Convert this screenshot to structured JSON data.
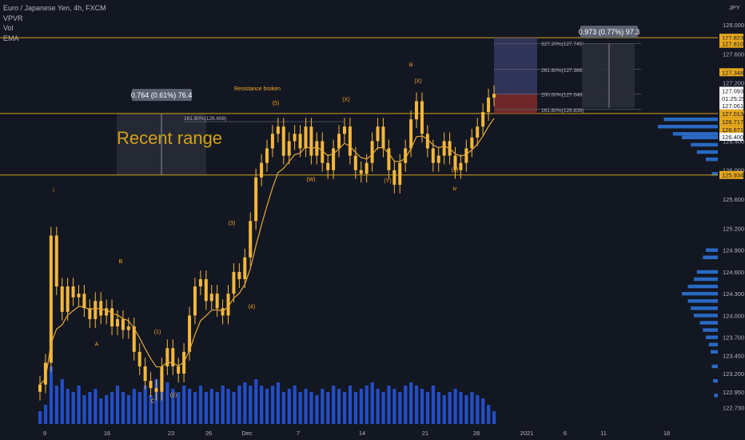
{
  "header": {
    "symbol": "Euro / Japanese Yen, 4h, FXCM",
    "indicators": [
      "VPVR",
      "Vol",
      "EMA"
    ],
    "currency": "JPY"
  },
  "colors": {
    "background": "#131722",
    "candle": "#f5b73b",
    "gold_line": "#d4a017",
    "ema": "#e8a838",
    "volume": "#2962ff",
    "profile": "#2f80ed",
    "label_bg_gold": "#e8a81c",
    "label_bg_white": "#ffffff",
    "label_bg_grey": "#3a3f4c",
    "text": "#b2b5be",
    "annotation": "#f5a623"
  },
  "chart_data": {
    "type": "candlestick",
    "symbol": "EURJPY",
    "timeframe": "4h",
    "ylim": [
      122.65,
      128.1
    ],
    "price_ticks": [
      "128.000",
      "127.600",
      "127.200",
      "126.800",
      "126.400",
      "126.000",
      "125.600",
      "125.200",
      "124.900",
      "124.600",
      "124.300",
      "124.000",
      "123.700",
      "123.450",
      "123.200",
      "122.950",
      "122.730"
    ],
    "date_ticks": [
      "9",
      "16",
      "23",
      "26",
      "Dec",
      "7",
      "14",
      "21",
      "28",
      "2021",
      "6",
      "11",
      "18"
    ],
    "price_labels": [
      {
        "text": "127.823",
        "price": 127.823,
        "style": "gold"
      },
      {
        "text": "127.810",
        "price": 127.74,
        "style": "gold"
      },
      {
        "text": "127.348",
        "price": 127.348,
        "style": "gold"
      },
      {
        "text": "127.093",
        "price": 127.093,
        "style": "white"
      },
      {
        "text": "01:25:25",
        "price": 126.99,
        "style": "white"
      },
      {
        "text": "127.061",
        "price": 126.89,
        "style": "white"
      },
      {
        "text": "127.013",
        "price": 126.78,
        "style": "gold"
      },
      {
        "text": "126.717",
        "price": 126.67,
        "style": "gold"
      },
      {
        "text": "126.671",
        "price": 126.56,
        "style": "gold"
      },
      {
        "text": "126.400",
        "price": 126.46,
        "style": "white"
      },
      {
        "text": "125.934",
        "price": 125.934,
        "style": "gold"
      }
    ],
    "horizontal_lines": [
      127.823,
      126.78,
      125.934
    ],
    "recent_range": {
      "label": "Recent range",
      "measure": "0.764 (0.61%) 76.4"
    },
    "target_measure": "0.973 (0.77%) 97.3",
    "fib_levels": [
      {
        "label": "327.20%(127.745)",
        "price": 127.745
      },
      {
        "label": "261.80%(127.386)",
        "price": 127.386
      },
      {
        "label": "200.00%(127.046)",
        "price": 127.046
      },
      {
        "label": "161.80%(126.836)",
        "price": 126.836
      }
    ],
    "left_fib": {
      "label": "161.80%(126.668)",
      "price": 126.668
    },
    "annotations": {
      "resistance": "Resistance broken",
      "wave_labels": [
        "i",
        "B",
        "A",
        "C",
        "(1)",
        "(2)",
        "(3)",
        "(4)",
        "(5)",
        "(W)",
        "(X)",
        "(Y)",
        "(X)",
        "(Z)",
        "iii",
        "iv"
      ]
    },
    "close": [
      123.05,
      123.35,
      125.1,
      124.4,
      124.05,
      124.4,
      124.25,
      124.3,
      124.1,
      123.95,
      124.2,
      124.0,
      124.1,
      123.85,
      123.95,
      123.8,
      123.85,
      123.5,
      123.3,
      123.1,
      123.0,
      122.95,
      123.3,
      123.55,
      123.3,
      123.2,
      123.5,
      124.0,
      124.4,
      124.5,
      124.2,
      124.3,
      124.1,
      124.0,
      124.3,
      124.6,
      124.5,
      124.8,
      125.3,
      125.9,
      126.1,
      126.3,
      126.5,
      126.6,
      126.2,
      126.4,
      126.5,
      126.3,
      126.6,
      126.2,
      126.4,
      126.1,
      126.0,
      126.3,
      126.5,
      126.6,
      126.2,
      126.0,
      125.95,
      126.1,
      126.4,
      126.6,
      126.3,
      126.0,
      125.8,
      126.1,
      126.3,
      126.7,
      126.95,
      126.5,
      126.3,
      126.1,
      126.2,
      126.4,
      126.2,
      126.0,
      126.1,
      126.3,
      126.45,
      126.6,
      126.8,
      127.0,
      127.05
    ],
    "volume": [
      0.2,
      0.3,
      0.9,
      0.6,
      0.7,
      0.55,
      0.5,
      0.6,
      0.45,
      0.5,
      0.55,
      0.4,
      0.45,
      0.5,
      0.6,
      0.5,
      0.45,
      0.55,
      0.5,
      0.6,
      0.45,
      0.7,
      0.8,
      0.65,
      0.55,
      0.5,
      0.6,
      0.55,
      0.5,
      0.6,
      0.5,
      0.55,
      0.5,
      0.6,
      0.55,
      0.5,
      0.6,
      0.65,
      0.6,
      0.7,
      0.6,
      0.55,
      0.6,
      0.65,
      0.5,
      0.55,
      0.6,
      0.5,
      0.55,
      0.5,
      0.45,
      0.55,
      0.5,
      0.6,
      0.55,
      0.5,
      0.6,
      0.5,
      0.55,
      0.6,
      0.65,
      0.55,
      0.5,
      0.6,
      0.55,
      0.5,
      0.6,
      0.65,
      0.6,
      0.55,
      0.5,
      0.6,
      0.5,
      0.45,
      0.5,
      0.55,
      0.5,
      0.45,
      0.5,
      0.45,
      0.4,
      0.3,
      0.2
    ]
  }
}
